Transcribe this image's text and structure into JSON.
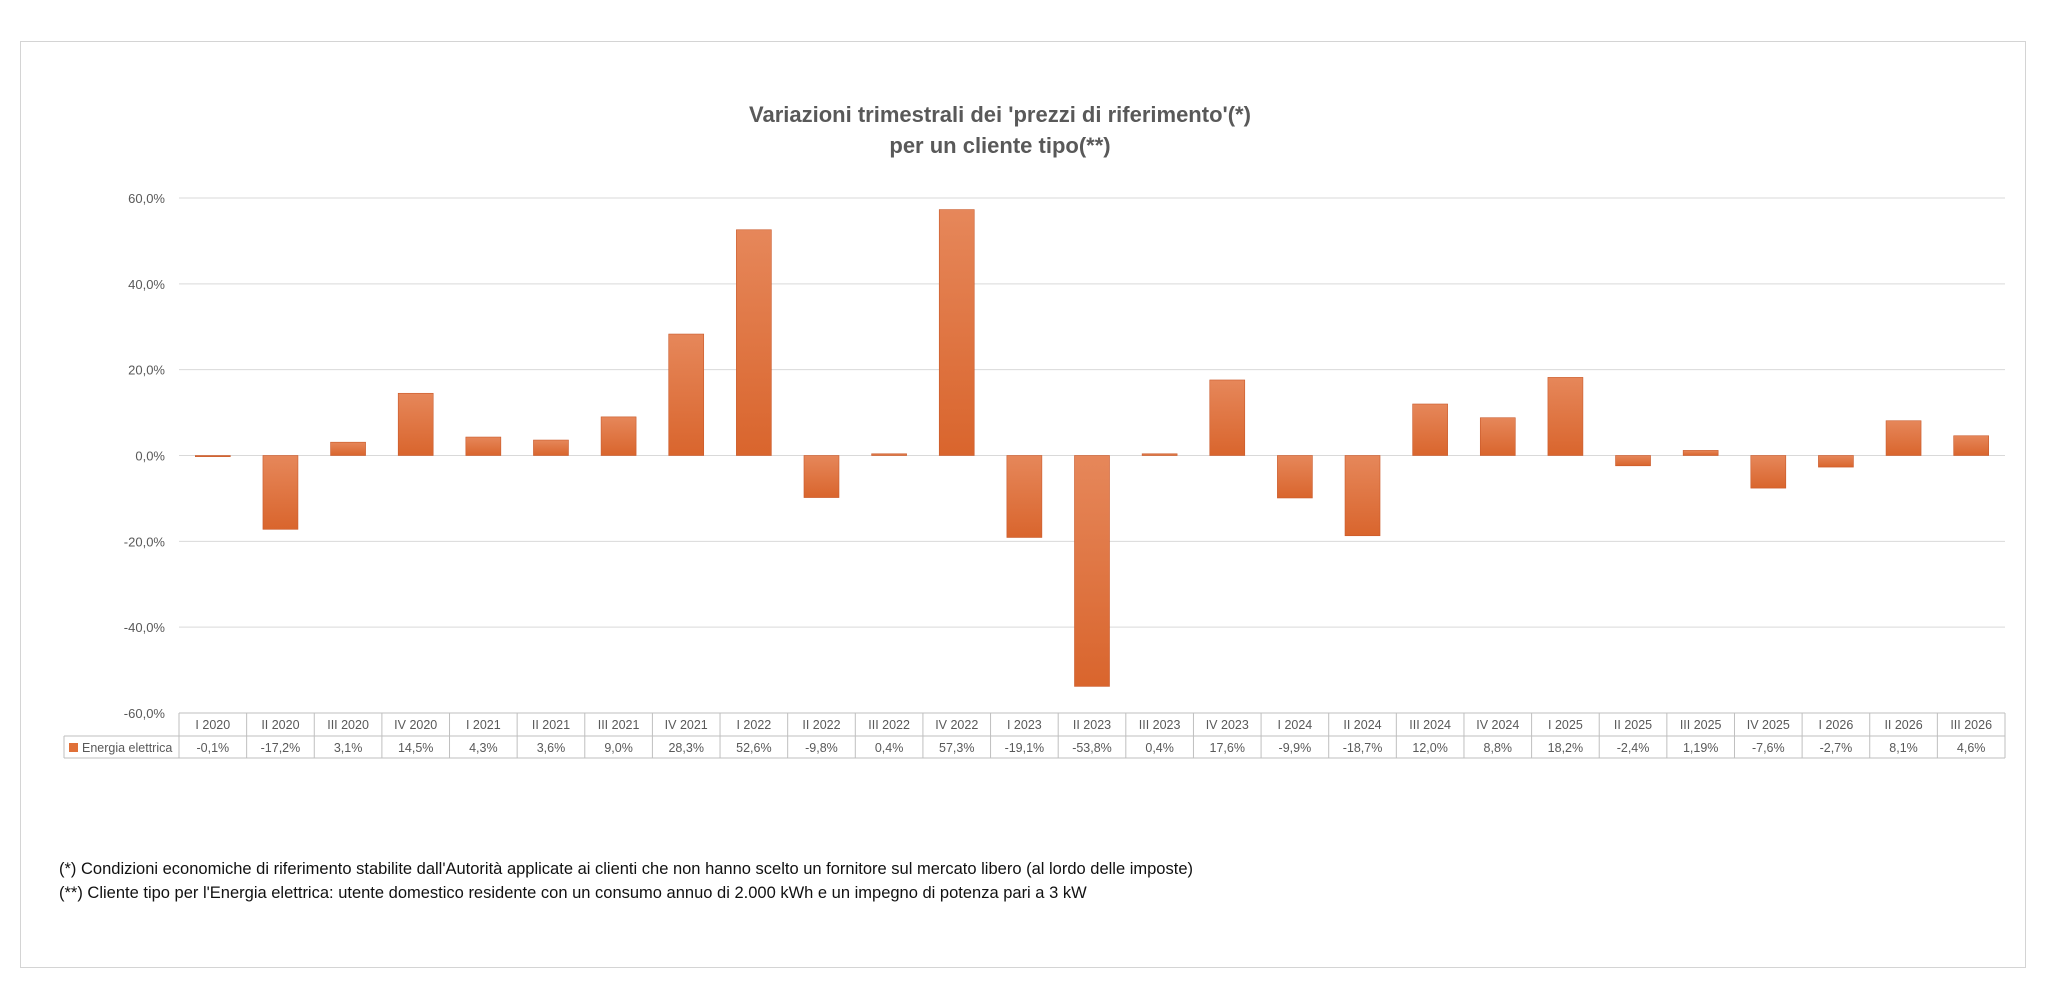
{
  "chart_data": {
    "type": "bar",
    "title": [
      "Variazioni trimestrali dei 'prezzi di riferimento'(*)",
      "per un cliente tipo(**)"
    ],
    "xlabel": "",
    "ylabel": "",
    "ylim": [
      -60,
      60
    ],
    "yticks": [
      60,
      40,
      20,
      0,
      -20,
      -40,
      -60
    ],
    "ytick_labels": [
      "60,0%",
      "40,0%",
      "20,0%",
      "0,0%",
      "-20,0%",
      "-40,0%",
      "-60,0%"
    ],
    "grid": true,
    "legend": "data-table-left",
    "categories": [
      "I 2020",
      "II 2020",
      "III 2020",
      "IV 2020",
      "I 2021",
      "II 2021",
      "III 2021",
      "IV 2021",
      "I 2022",
      "II 2022",
      "III 2022",
      "IV 2022",
      "I 2023",
      "II 2023",
      "III 2023",
      "IV 2023",
      "I 2024",
      "II 2024",
      "III 2024",
      "IV 2024",
      "I 2025",
      "II 2025",
      "III 2025",
      "IV 2025",
      "I 2026",
      "II 2026",
      "III 2026"
    ],
    "series": [
      {
        "name": "Energia elettrica",
        "color": "#e07038",
        "values": [
          -0.1,
          -17.2,
          3.1,
          14.5,
          4.3,
          3.6,
          9.0,
          28.3,
          52.6,
          -9.8,
          0.4,
          57.3,
          -19.1,
          -53.8,
          0.4,
          17.6,
          -9.9,
          -18.7,
          12.0,
          8.8,
          18.2,
          -2.4,
          1.19,
          -7.6,
          -2.7,
          8.1,
          4.6
        ],
        "value_labels": [
          "-0,1%",
          "-17,2%",
          "3,1%",
          "14,5%",
          "4,3%",
          "3,6%",
          "9,0%",
          "28,3%",
          "52,6%",
          "-9,8%",
          "0,4%",
          "57,3%",
          "-19,1%",
          "-53,8%",
          "0,4%",
          "17,6%",
          "-9,9%",
          "-18,7%",
          "12,0%",
          "8,8%",
          "18,2%",
          "-2,4%",
          "1,19%",
          "-7,6%",
          "-2,7%",
          "8,1%",
          "4,6%"
        ]
      }
    ]
  },
  "notes": [
    "(*) Condizioni economiche di riferimento stabilite dall'Autorità applicate ai clienti che non hanno scelto un fornitore sul mercato libero (al lordo delle imposte)",
    "(**) Cliente tipo per l'Energia elettrica: utente domestico residente con un consumo annuo di 2.000 kWh e un impegno di potenza pari a 3 kW"
  ]
}
